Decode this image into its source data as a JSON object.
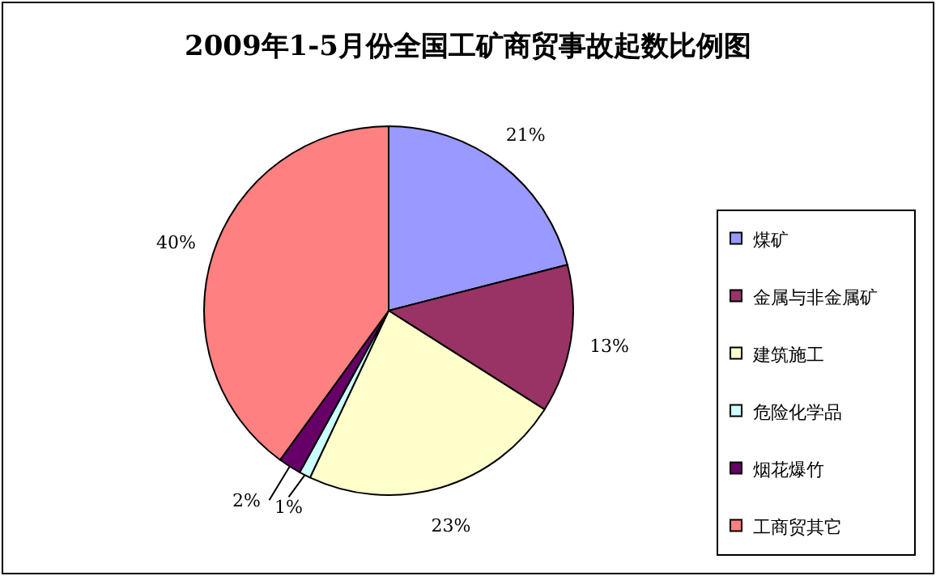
{
  "chart_data": {
    "type": "pie",
    "title": "2009年1-5月份全国工矿商贸事故起数比例图",
    "categories": [
      "煤矿",
      "金属与非金属矿",
      "建筑施工",
      "危险化学品",
      "烟花爆竹",
      "工商贸其它"
    ],
    "values": [
      21,
      13,
      23,
      1,
      2,
      40
    ],
    "colors": [
      "#9999ff",
      "#993366",
      "#ffffcc",
      "#ccffff",
      "#660066",
      "#ff8080"
    ],
    "value_labels": [
      "21%",
      "13%",
      "23%",
      "1%",
      "2%",
      "40%"
    ],
    "data_labels": true,
    "legend": "right"
  }
}
